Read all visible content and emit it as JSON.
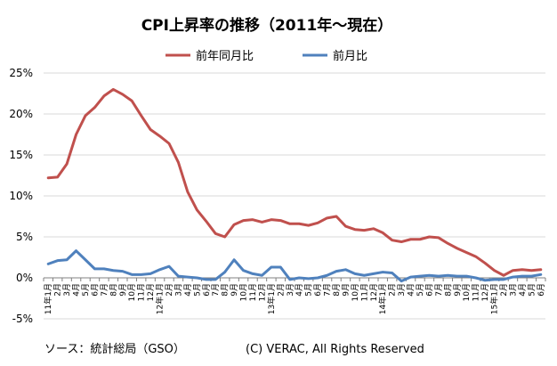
{
  "chart_data": {
    "type": "line",
    "title": "CPI上昇率の推移（2011年～現在）",
    "xlabel": "",
    "ylabel": "",
    "ylim": [
      -5,
      25
    ],
    "yticks": [
      "-5%",
      "0%",
      "5%",
      "10%",
      "15%",
      "20%",
      "25%"
    ],
    "ytick_values": [
      -5,
      0,
      5,
      10,
      15,
      20,
      25
    ],
    "grid": true,
    "legend_position": "top",
    "categories": [
      "11年1月",
      "2月",
      "3月",
      "4月",
      "5月",
      "6月",
      "7月",
      "8月",
      "9月",
      "10月",
      "11月",
      "12月",
      "12年1月",
      "2月",
      "3月",
      "4月",
      "5月",
      "6月",
      "7月",
      "8月",
      "9月",
      "10月",
      "11月",
      "12月",
      "13年1月",
      "2月",
      "3月",
      "4月",
      "5月",
      "6月",
      "7月",
      "8月",
      "9月",
      "10月",
      "11月",
      "12月",
      "14年1月",
      "2月",
      "3月",
      "4月",
      "5月",
      "6月",
      "7月",
      "8月",
      "9月",
      "10月",
      "11月",
      "12月",
      "15年1月",
      "2月",
      "3月",
      "4月",
      "5月",
      "6月"
    ],
    "series": [
      {
        "name": "前年同月比",
        "color": "#c0504d",
        "values": [
          12.2,
          12.3,
          13.9,
          17.5,
          19.8,
          20.8,
          22.2,
          23.0,
          22.4,
          21.6,
          19.8,
          18.1,
          17.3,
          16.4,
          14.1,
          10.5,
          8.3,
          6.9,
          5.4,
          5.0,
          6.5,
          7.0,
          7.1,
          6.8,
          7.1,
          7.0,
          6.6,
          6.6,
          6.4,
          6.7,
          7.3,
          7.5,
          6.3,
          5.9,
          5.8,
          6.0,
          5.5,
          4.6,
          4.4,
          4.7,
          4.7,
          5.0,
          4.9,
          4.2,
          3.6,
          3.1,
          2.6,
          1.8,
          0.9,
          0.3,
          0.9,
          1.0,
          0.9,
          1.0
        ]
      },
      {
        "name": "前月比",
        "color": "#4f81bd",
        "values": [
          1.7,
          2.1,
          2.2,
          3.3,
          2.2,
          1.1,
          1.1,
          0.9,
          0.8,
          0.4,
          0.4,
          0.5,
          1.0,
          1.4,
          0.2,
          0.1,
          0.0,
          -0.2,
          -0.2,
          0.7,
          2.2,
          0.9,
          0.5,
          0.3,
          1.3,
          1.3,
          -0.2,
          0.0,
          -0.1,
          0.0,
          0.3,
          0.8,
          1.0,
          0.5,
          0.3,
          0.5,
          0.7,
          0.6,
          -0.4,
          0.1,
          0.2,
          0.3,
          0.2,
          0.3,
          0.2,
          0.2,
          0.0,
          -0.3,
          -0.2,
          -0.2,
          0.1,
          0.2,
          0.2,
          0.4
        ]
      }
    ]
  },
  "footer": {
    "source": "ソース：統計総局（GSO）",
    "copyright": "(C) VERAC, All Rights Reserved"
  }
}
